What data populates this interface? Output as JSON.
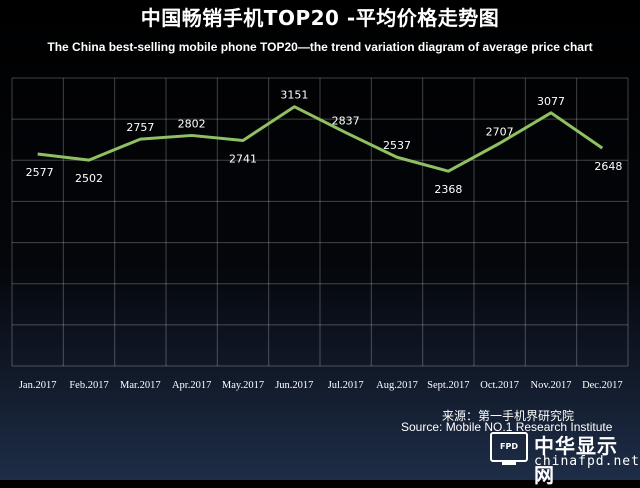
{
  "chart_data": {
    "type": "line",
    "title": "中国畅销手机TOP20 -平均价格走势图",
    "subtitle": "The China best-selling mobile phone TOP20—the trend variation diagram of average price chart",
    "xlabel": "",
    "ylabel": "",
    "categories": [
      "Jan.2017",
      "Feb.2017",
      "Mar.2017",
      "Apr.2017",
      "May.2017",
      "Jun.2017",
      "Jul.2017",
      "Aug.2017",
      "Sept.2017",
      "Oct.2017",
      "Nov.2017",
      "Dec.2017"
    ],
    "series": [
      {
        "values": [
          2577,
          2502,
          2757,
          2802,
          2741,
          3151,
          2837,
          2537,
          2368,
          2707,
          3077,
          2648
        ]
      }
    ],
    "ylim": [
      0,
      3500
    ],
    "grid": true,
    "line_color": "#8fc062"
  },
  "footer": {
    "source_cn": "来源：第一手机界研究院",
    "source_en": "Source: Mobile NO.1  Research Institute"
  },
  "logo": {
    "mark_text": "FPD",
    "name_cn": "中华显示网",
    "name_en": "chinafpd.net"
  }
}
